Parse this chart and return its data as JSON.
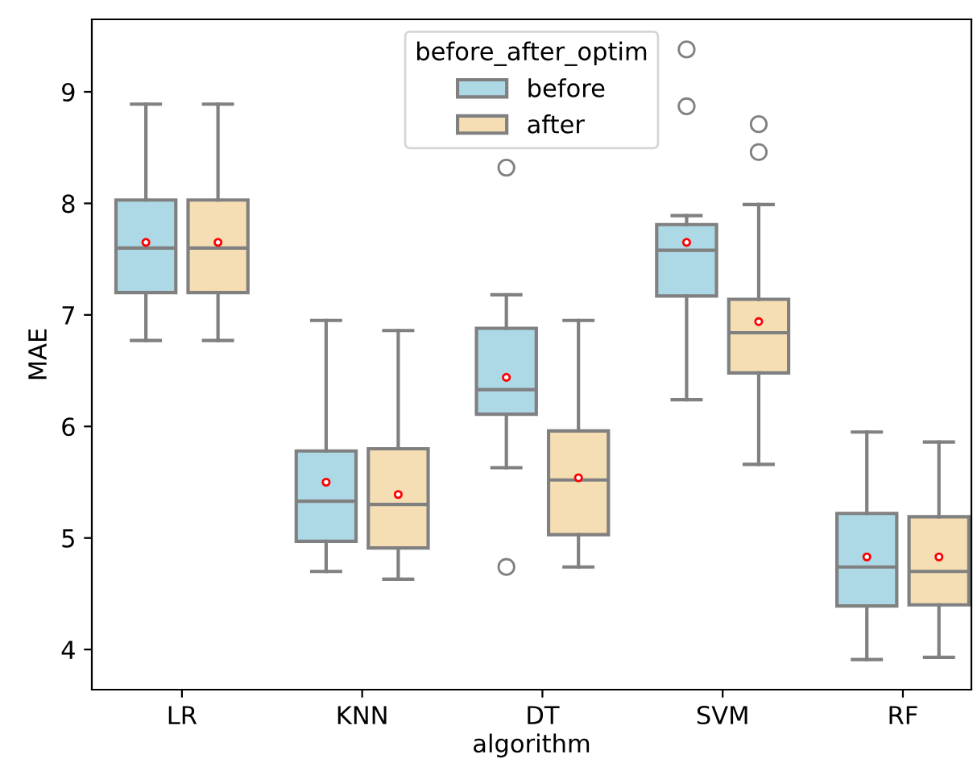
{
  "chart_data": {
    "type": "box",
    "xlabel": "algorithm",
    "ylabel": "MAE",
    "legend_title": "before_after_optim",
    "legend": "top",
    "grid": false,
    "categories": [
      "LR",
      "KNN",
      "DT",
      "SVM",
      "RF"
    ],
    "ylim": [
      3.64,
      9.65
    ],
    "yticks": [
      4,
      5,
      6,
      7,
      8,
      9
    ],
    "series": [
      {
        "name": "before",
        "color": "#add8e6",
        "boxes": [
          {
            "low": 6.77,
            "q1": 7.2,
            "median": 7.6,
            "q3": 8.03,
            "high": 8.89,
            "mean": 7.65
          },
          {
            "low": 4.7,
            "q1": 4.97,
            "median": 5.33,
            "q3": 5.78,
            "high": 6.95,
            "mean": 5.5
          },
          {
            "low": 5.63,
            "q1": 6.11,
            "median": 6.33,
            "q3": 6.88,
            "high": 7.18,
            "mean": 6.44,
            "outliers": [
              8.32,
              4.74
            ]
          },
          {
            "low": 6.24,
            "q1": 7.17,
            "median": 7.58,
            "q3": 7.81,
            "high": 7.89,
            "mean": 7.65,
            "outliers": [
              9.38,
              8.87
            ]
          },
          {
            "low": 3.91,
            "q1": 4.39,
            "median": 4.74,
            "q3": 5.22,
            "high": 5.95,
            "mean": 4.83
          }
        ]
      },
      {
        "name": "after",
        "color": "#f5deb3",
        "boxes": [
          {
            "low": 6.77,
            "q1": 7.2,
            "median": 7.6,
            "q3": 8.03,
            "high": 8.89,
            "mean": 7.65
          },
          {
            "low": 4.63,
            "q1": 4.91,
            "median": 5.3,
            "q3": 5.8,
            "high": 6.86,
            "mean": 5.39
          },
          {
            "low": 4.74,
            "q1": 5.03,
            "median": 5.52,
            "q3": 5.96,
            "high": 6.95,
            "mean": 5.54
          },
          {
            "low": 5.66,
            "q1": 6.48,
            "median": 6.84,
            "q3": 7.14,
            "high": 7.99,
            "mean": 6.94,
            "outliers": [
              8.71,
              8.46
            ]
          },
          {
            "low": 3.93,
            "q1": 4.4,
            "median": 4.7,
            "q3": 5.19,
            "high": 5.86,
            "mean": 4.83
          }
        ]
      }
    ]
  }
}
